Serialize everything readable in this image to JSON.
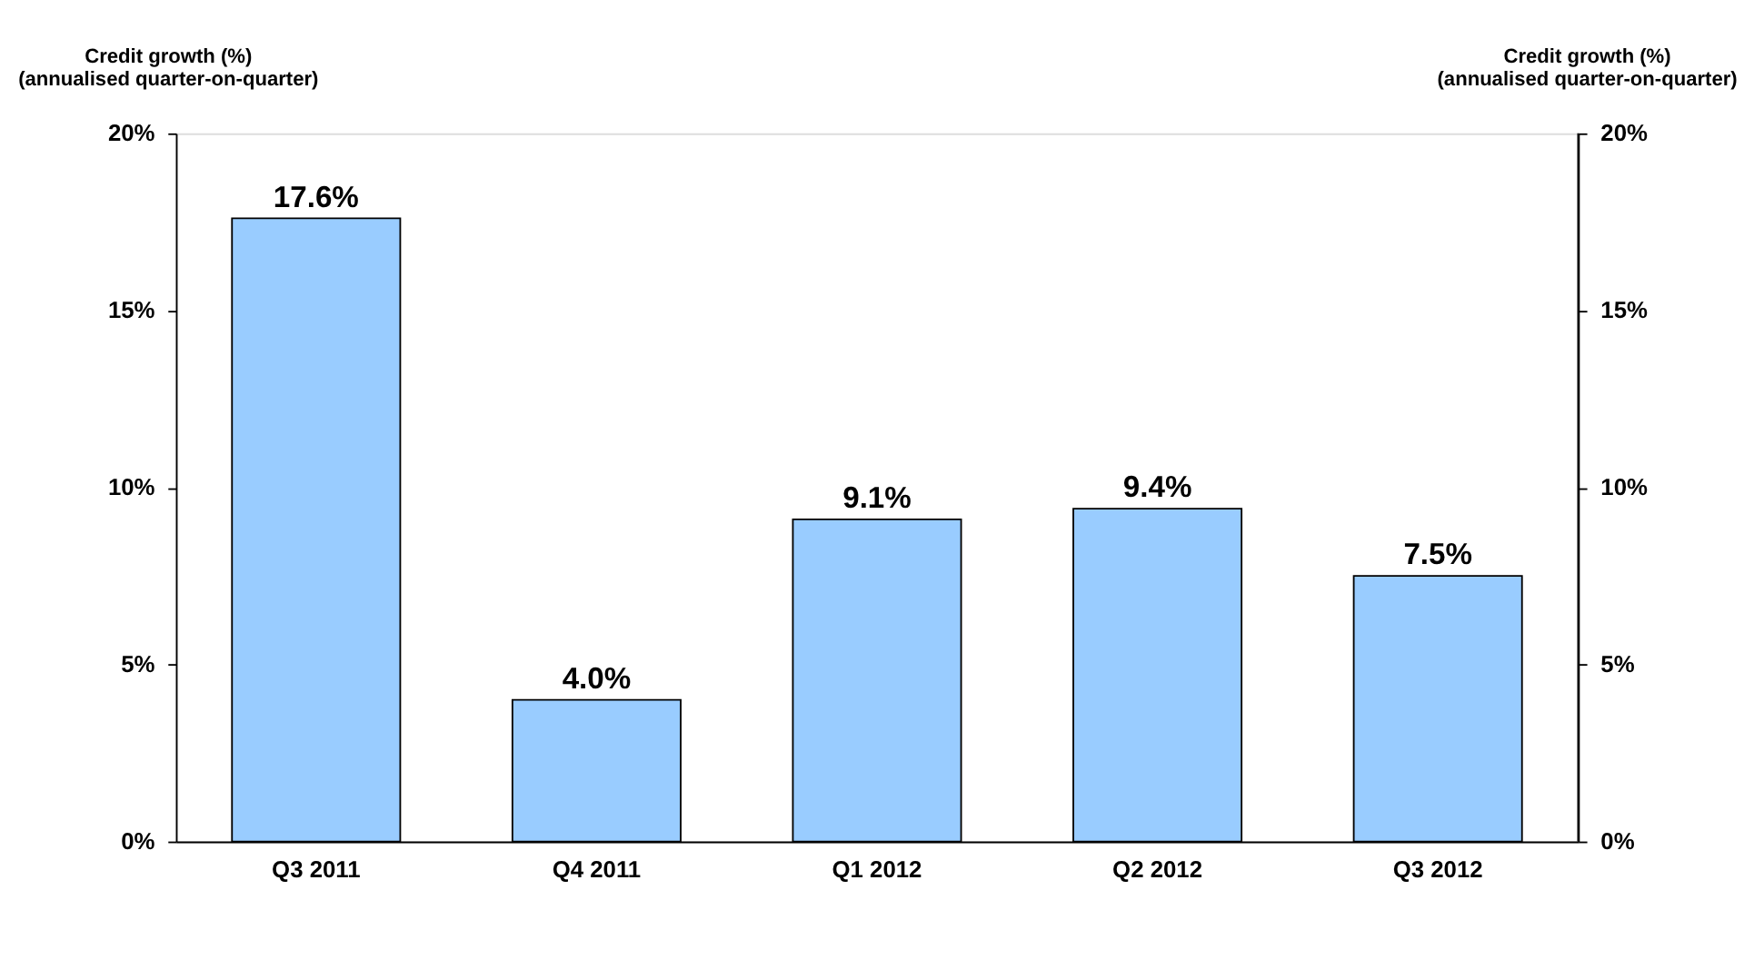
{
  "chart_data": {
    "type": "bar",
    "categories": [
      "Q3 2011",
      "Q4 2011",
      "Q1 2012",
      "Q2 2012",
      "Q3 2012"
    ],
    "values": [
      17.6,
      4.0,
      9.1,
      9.4,
      7.5
    ],
    "value_labels": [
      "17.6%",
      "4.0%",
      "9.1%",
      "9.4%",
      "7.5%"
    ],
    "color": "#99ccff",
    "ylabel": "Credit growth (%)\n(annualised quarter-on-quarter)",
    "y2label": "Credit growth (%)\n(annualised quarter-on-quarter)",
    "ylim": [
      0,
      20
    ],
    "yticks": [
      {
        "value": 0,
        "label": "0%"
      },
      {
        "value": 5,
        "label": "5%"
      },
      {
        "value": 10,
        "label": "10%"
      },
      {
        "value": 15,
        "label": "15%"
      },
      {
        "value": 20,
        "label": "20%"
      }
    ],
    "y2lim": [
      0,
      20
    ],
    "y2ticks": [
      {
        "value": 0,
        "label": "0%"
      },
      {
        "value": 5,
        "label": "5%"
      },
      {
        "value": 10,
        "label": "10%"
      },
      {
        "value": 15,
        "label": "15%"
      },
      {
        "value": 20,
        "label": "20%"
      }
    ],
    "grid": false
  }
}
